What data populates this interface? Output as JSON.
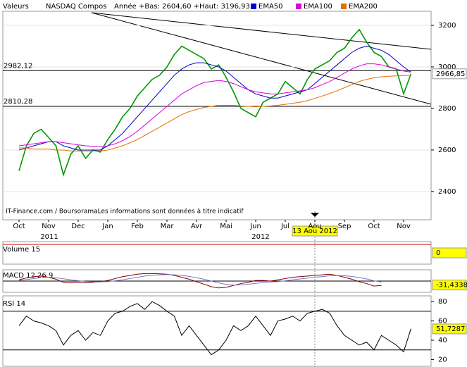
{
  "chart_data": [
    {
      "type": "line",
      "label": "Valeurs",
      "subtitle": "Année +Bas: 2604,60 +Haut: 3196,93",
      "footnote": "IT-Finance.com / BoursoramaLes informations sont données à titre indicatif",
      "year_labels": [
        "2011",
        "2012"
      ],
      "cursor_label": "13 Aou 2012",
      "categories": [
        "Oct",
        null,
        null,
        null,
        "Nov",
        null,
        null,
        null,
        "Dec",
        null,
        null,
        null,
        "Jan",
        null,
        null,
        null,
        "Feb",
        null,
        null,
        null,
        "Mar",
        null,
        null,
        null,
        "Avr",
        null,
        null,
        null,
        "Mai",
        null,
        null,
        null,
        "Jun",
        null,
        null,
        null,
        "Jul",
        null,
        null,
        null,
        "Aou",
        null,
        null,
        null,
        "Sep",
        null,
        null,
        null,
        "Oct",
        null,
        null,
        null,
        "Nov",
        null
      ],
      "series": [
        {
          "name": "NASDAQ Compos",
          "color": "#009900",
          "values": [
            2500,
            2620,
            2680,
            2700,
            2660,
            2620,
            2480,
            2580,
            2620,
            2560,
            2600,
            2590,
            2650,
            2700,
            2760,
            2800,
            2860,
            2900,
            2940,
            2960,
            3000,
            3060,
            3100,
            3080,
            3060,
            3040,
            2990,
            3010,
            2950,
            2880,
            2800,
            2780,
            2760,
            2830,
            2850,
            2870,
            2930,
            2900,
            2870,
            2940,
            2990,
            3010,
            3030,
            3070,
            3090,
            3140,
            3180,
            3120,
            3070,
            3050,
            3000,
            2990,
            2870,
            2967
          ]
        },
        {
          "name": "EMA50",
          "color": "#0000cc",
          "values": [
            2600,
            2610,
            2620,
            2630,
            2640,
            2640,
            2620,
            2610,
            2600,
            2600,
            2600,
            2600,
            2620,
            2650,
            2680,
            2720,
            2760,
            2800,
            2840,
            2880,
            2920,
            2960,
            2990,
            3010,
            3020,
            3020,
            3010,
            3000,
            2980,
            2950,
            2920,
            2890,
            2870,
            2860,
            2850,
            2850,
            2860,
            2870,
            2880,
            2890,
            2920,
            2950,
            2980,
            3010,
            3040,
            3070,
            3090,
            3100,
            3090,
            3080,
            3060,
            3030,
            3000,
            2975
          ]
        },
        {
          "name": "EMA100",
          "color": "#dd00dd",
          "values": [
            2620,
            2625,
            2630,
            2635,
            2640,
            2640,
            2635,
            2630,
            2625,
            2620,
            2618,
            2615,
            2620,
            2630,
            2645,
            2665,
            2690,
            2720,
            2750,
            2780,
            2810,
            2840,
            2870,
            2890,
            2910,
            2925,
            2930,
            2935,
            2930,
            2920,
            2905,
            2890,
            2880,
            2875,
            2870,
            2870,
            2875,
            2880,
            2885,
            2890,
            2900,
            2915,
            2930,
            2950,
            2970,
            2990,
            3005,
            3015,
            3015,
            3010,
            3000,
            2990,
            2980,
            2975
          ]
        },
        {
          "name": "EMA200",
          "color": "#e07000",
          "values": [
            2610,
            2610,
            2605,
            2605,
            2605,
            2600,
            2600,
            2595,
            2595,
            2595,
            2595,
            2595,
            2600,
            2610,
            2620,
            2635,
            2650,
            2670,
            2690,
            2710,
            2730,
            2750,
            2770,
            2785,
            2795,
            2805,
            2810,
            2815,
            2815,
            2815,
            2812,
            2810,
            2808,
            2810,
            2812,
            2815,
            2820,
            2825,
            2830,
            2838,
            2848,
            2860,
            2872,
            2885,
            2900,
            2915,
            2930,
            2940,
            2948,
            2952,
            2955,
            2957,
            2958,
            2960
          ]
        }
      ],
      "levels": [
        {
          "value": 2982.12,
          "label": "2982,12"
        },
        {
          "value": 2810.28,
          "label": "2810,28"
        }
      ],
      "last_value": {
        "value": 2966.85,
        "label": "2966,85"
      },
      "ylim": [
        2264,
        3268
      ],
      "yticks": [
        2400,
        2600,
        2800,
        3000,
        3200
      ],
      "grid": true
    },
    {
      "type": "line",
      "label": "Volume 15",
      "last_value": 0
    },
    {
      "type": "line",
      "label": "MACD 12 26 9",
      "series": [
        {
          "color": "#800000",
          "values": [
            10,
            25,
            35,
            40,
            30,
            15,
            -10,
            -15,
            -10,
            -15,
            -10,
            -5,
            5,
            20,
            35,
            45,
            55,
            60,
            60,
            58,
            55,
            45,
            30,
            15,
            -5,
            -25,
            -45,
            -55,
            -50,
            -35,
            -20,
            -10,
            5,
            5,
            0,
            10,
            20,
            30,
            35,
            40,
            45,
            50,
            55,
            45,
            30,
            15,
            -5,
            -20,
            -40,
            -35
          ]
        },
        {
          "color": "#7777cc",
          "values": [
            5,
            12,
            20,
            28,
            30,
            26,
            18,
            10,
            3,
            -3,
            -6,
            -6,
            -4,
            2,
            10,
            20,
            30,
            40,
            46,
            50,
            52,
            50,
            45,
            37,
            27,
            15,
            0,
            -15,
            -27,
            -32,
            -30,
            -25,
            -18,
            -12,
            -8,
            -4,
            2,
            10,
            17,
            24,
            30,
            36,
            42,
            44,
            42,
            37,
            28,
            17,
            2,
            -8
          ]
        }
      ],
      "last_value": {
        "value": -31.4338,
        "label": "-31,4338"
      },
      "ylim": [
        -90,
        90
      ]
    },
    {
      "type": "line",
      "label": "RSI 14",
      "series": [
        {
          "color": "#000000",
          "values": [
            55,
            65,
            60,
            58,
            55,
            50,
            35,
            45,
            50,
            40,
            48,
            45,
            60,
            68,
            70,
            75,
            78,
            72,
            80,
            76,
            70,
            65,
            45,
            55,
            45,
            35,
            25,
            30,
            40,
            55,
            50,
            55,
            65,
            55,
            45,
            60,
            62,
            65,
            60,
            68,
            70,
            72,
            68,
            55,
            45,
            40,
            35,
            38,
            30,
            45,
            40,
            35,
            28,
            52
          ]
        }
      ],
      "levels": [
        30,
        70
      ],
      "last_value": {
        "value": 51.7287,
        "label": "51,7287"
      },
      "ylim": [
        13,
        86
      ],
      "yticks": [
        20,
        40,
        60,
        80
      ]
    }
  ]
}
